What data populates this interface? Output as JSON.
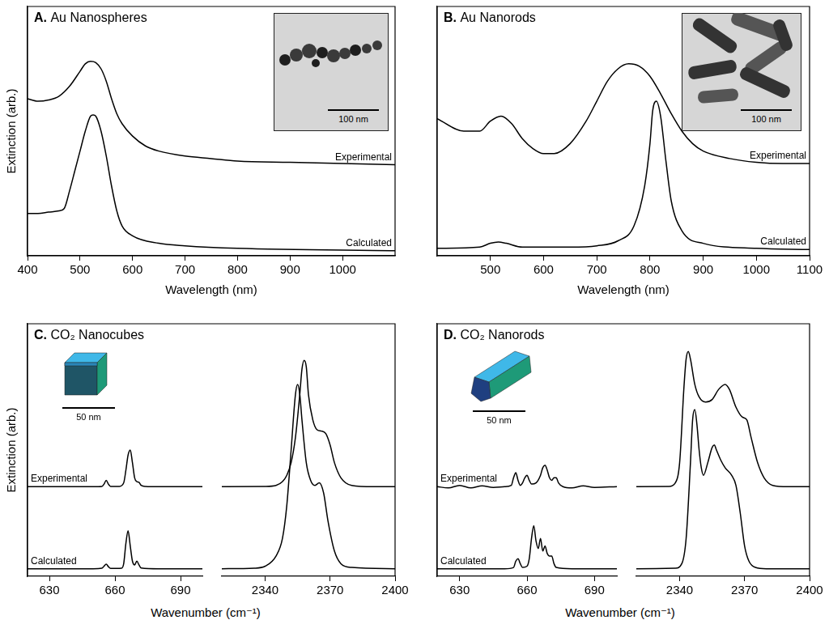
{
  "chart_data": [
    {
      "type": "line",
      "panel": "A.",
      "title": "Au Nanospheres",
      "xlabel": "Wavelength (nm)",
      "ylabel": "Extinction (arb.)",
      "xlim": [
        400,
        1100
      ],
      "xticks": [
        400,
        500,
        600,
        700,
        800,
        900,
        1000
      ],
      "ylim": [
        0,
        1
      ],
      "tick_labels": "x",
      "inset": {
        "scale_bar": "100 nm"
      },
      "series": [
        {
          "name": "Experimental",
          "color": "#000000",
          "x": [
            400,
            420,
            440,
            460,
            480,
            500,
            510,
            520,
            530,
            540,
            550,
            560,
            570,
            580,
            600,
            625,
            650,
            700,
            750,
            800,
            900,
            1000,
            1100
          ],
          "values": [
            0.63,
            0.62,
            0.625,
            0.64,
            0.68,
            0.74,
            0.77,
            0.78,
            0.775,
            0.75,
            0.7,
            0.63,
            0.57,
            0.53,
            0.48,
            0.44,
            0.42,
            0.4,
            0.39,
            0.38,
            0.375,
            0.37,
            0.365
          ]
        },
        {
          "name": "Calculated",
          "color": "#000000",
          "x": [
            400,
            420,
            440,
            460,
            470,
            480,
            490,
            500,
            510,
            520,
            525,
            530,
            540,
            550,
            560,
            570,
            580,
            600,
            650,
            700,
            800,
            1100
          ],
          "values": [
            0.17,
            0.17,
            0.175,
            0.18,
            0.19,
            0.26,
            0.34,
            0.42,
            0.5,
            0.56,
            0.565,
            0.56,
            0.5,
            0.4,
            0.28,
            0.18,
            0.12,
            0.08,
            0.05,
            0.04,
            0.03,
            0.02
          ]
        }
      ]
    },
    {
      "type": "line",
      "panel": "B.",
      "title": "Au Nanorods",
      "xlabel": "Wavelength (nm)",
      "xlim": [
        400,
        1100
      ],
      "xticks": [
        500,
        600,
        700,
        800,
        900,
        1000,
        1100
      ],
      "ylim": [
        0,
        1
      ],
      "tick_labels": "x",
      "inset": {
        "scale_bar": "100 nm"
      },
      "series": [
        {
          "name": "Experimental",
          "color": "#000000",
          "x": [
            400,
            450,
            480,
            500,
            520,
            540,
            560,
            580,
            600,
            620,
            650,
            680,
            700,
            720,
            740,
            760,
            780,
            800,
            820,
            840,
            860,
            880,
            900,
            950,
            1000,
            1050,
            1100
          ],
          "values": [
            0.55,
            0.5,
            0.5,
            0.54,
            0.56,
            0.53,
            0.47,
            0.43,
            0.41,
            0.41,
            0.45,
            0.54,
            0.62,
            0.7,
            0.75,
            0.77,
            0.76,
            0.72,
            0.65,
            0.57,
            0.5,
            0.45,
            0.42,
            0.39,
            0.375,
            0.37,
            0.37
          ]
        },
        {
          "name": "Calculated",
          "color": "#000000",
          "x": [
            400,
            480,
            500,
            515,
            530,
            560,
            650,
            700,
            740,
            770,
            790,
            800,
            805,
            812,
            820,
            830,
            840,
            860,
            900,
            1000,
            1100
          ],
          "values": [
            0.03,
            0.035,
            0.05,
            0.055,
            0.05,
            0.035,
            0.035,
            0.04,
            0.06,
            0.12,
            0.28,
            0.45,
            0.58,
            0.62,
            0.56,
            0.38,
            0.22,
            0.1,
            0.05,
            0.03,
            0.025
          ]
        }
      ]
    },
    {
      "type": "line",
      "panel": "C.",
      "title": "CO₂ Nanocubes",
      "xlabel": "Wavenumber (cm⁻¹)",
      "ylabel": "Extinction (arb.)",
      "ylim": [
        0,
        1
      ],
      "tick_labels": "x",
      "inset": {
        "scale_bar": "50 nm"
      },
      "x_segments": [
        {
          "xlim": [
            620,
            700
          ],
          "xticks": [
            630,
            660,
            690
          ]
        },
        {
          "xlim": [
            2320,
            2400
          ],
          "xticks": [
            2340,
            2370,
            2400
          ]
        }
      ],
      "series": [
        {
          "name": "Experimental",
          "color": "#000000",
          "segments": [
            {
              "x": [
                620,
                630,
                640,
                650,
                654,
                655,
                656,
                657,
                658,
                662,
                664,
                665,
                666,
                667,
                668,
                669,
                670,
                671,
                672,
                674,
                680,
                690,
                700
              ],
              "values": [
                0.355,
                0.355,
                0.355,
                0.355,
                0.356,
                0.365,
                0.38,
                0.365,
                0.356,
                0.356,
                0.37,
                0.42,
                0.48,
                0.5,
                0.45,
                0.39,
                0.375,
                0.372,
                0.36,
                0.356,
                0.355,
                0.355,
                0.355
              ]
            },
            {
              "x": [
                2320,
                2340,
                2345,
                2348,
                2350,
                2352,
                2354,
                2356,
                2357,
                2358,
                2359,
                2360,
                2362,
                2364,
                2366,
                2368,
                2370,
                2372,
                2375,
                2380,
                2390,
                2400
              ],
              "values": [
                0.355,
                0.356,
                0.36,
                0.375,
                0.4,
                0.45,
                0.55,
                0.72,
                0.82,
                0.855,
                0.83,
                0.72,
                0.62,
                0.58,
                0.575,
                0.565,
                0.52,
                0.45,
                0.39,
                0.36,
                0.355,
                0.355
              ]
            }
          ]
        },
        {
          "name": "Calculated",
          "color": "#000000",
          "segments": [
            {
              "x": [
                620,
                650,
                654,
                655,
                656,
                657,
                658,
                663,
                664,
                665,
                666,
                667,
                668,
                669,
                670,
                671,
                672,
                680,
                700
              ],
              "values": [
                0.03,
                0.03,
                0.032,
                0.04,
                0.048,
                0.038,
                0.031,
                0.032,
                0.05,
                0.13,
                0.18,
                0.12,
                0.06,
                0.045,
                0.06,
                0.045,
                0.033,
                0.03,
                0.03
              ]
            },
            {
              "x": [
                2320,
                2335,
                2340,
                2345,
                2348,
                2350,
                2352,
                2354,
                2355,
                2356,
                2357,
                2359,
                2361,
                2363,
                2365,
                2367,
                2369,
                2372,
                2375,
                2380,
                2400
              ],
              "values": [
                0.03,
                0.032,
                0.04,
                0.08,
                0.15,
                0.28,
                0.5,
                0.72,
                0.76,
                0.72,
                0.62,
                0.45,
                0.38,
                0.36,
                0.37,
                0.33,
                0.22,
                0.1,
                0.05,
                0.035,
                0.03
              ]
            }
          ]
        }
      ]
    },
    {
      "type": "line",
      "panel": "D.",
      "title": "CO₂ Nanorods",
      "xlabel": "Wavenumber (cm⁻¹)",
      "ylim": [
        0,
        1
      ],
      "tick_labels": "x",
      "inset": {
        "scale_bar": "50 nm"
      },
      "x_segments": [
        {
          "xlim": [
            620,
            700
          ],
          "xticks": [
            630,
            660,
            690
          ]
        },
        {
          "xlim": [
            2320,
            2400
          ],
          "xticks": [
            2340,
            2370,
            2400
          ]
        }
      ],
      "series": [
        {
          "name": "Experimental",
          "color": "#000000",
          "segments": [
            {
              "x": [
                620,
                625,
                630,
                635,
                640,
                645,
                650,
                653,
                654,
                655,
                656,
                657,
                658,
                659,
                660,
                661,
                662,
                664,
                666,
                667,
                668,
                669,
                670,
                671,
                672,
                673,
                674,
                676,
                680,
                685,
                690,
                700
              ],
              "values": [
                0.355,
                0.35,
                0.36,
                0.35,
                0.358,
                0.352,
                0.355,
                0.36,
                0.39,
                0.41,
                0.38,
                0.36,
                0.37,
                0.39,
                0.4,
                0.38,
                0.365,
                0.37,
                0.4,
                0.43,
                0.44,
                0.42,
                0.39,
                0.38,
                0.39,
                0.39,
                0.37,
                0.355,
                0.35,
                0.358,
                0.352,
                0.355
              ]
            },
            {
              "x": [
                2320,
                2335,
                2338,
                2340,
                2342,
                2343,
                2344,
                2345,
                2347,
                2349,
                2352,
                2355,
                2358,
                2361,
                2363,
                2366,
                2369,
                2371,
                2373,
                2376,
                2379,
                2383,
                2390,
                2400
              ],
              "values": [
                0.355,
                0.356,
                0.37,
                0.45,
                0.75,
                0.86,
                0.89,
                0.86,
                0.76,
                0.71,
                0.69,
                0.7,
                0.74,
                0.76,
                0.74,
                0.67,
                0.63,
                0.62,
                0.55,
                0.45,
                0.39,
                0.36,
                0.355,
                0.355
              ]
            }
          ]
        },
        {
          "name": "Calculated",
          "color": "#000000",
          "segments": [
            {
              "x": [
                620,
                650,
                654,
                655,
                656,
                657,
                658,
                660,
                661,
                662,
                663,
                664,
                665,
                666,
                667,
                668,
                669,
                670,
                671,
                672,
                673,
                680,
                700
              ],
              "values": [
                0.03,
                0.03,
                0.035,
                0.06,
                0.07,
                0.05,
                0.035,
                0.04,
                0.07,
                0.15,
                0.2,
                0.14,
                0.11,
                0.15,
                0.1,
                0.12,
                0.09,
                0.08,
                0.08,
                0.05,
                0.035,
                0.03,
                0.03
              ]
            },
            {
              "x": [
                2320,
                2338,
                2341,
                2343,
                2345,
                2346,
                2347,
                2348,
                2349,
                2350,
                2351,
                2353,
                2355,
                2356,
                2357,
                2359,
                2361,
                2364,
                2366,
                2368,
                2370,
                2372,
                2375,
                2380,
                2400
              ],
              "values": [
                0.03,
                0.032,
                0.05,
                0.15,
                0.45,
                0.62,
                0.66,
                0.6,
                0.5,
                0.43,
                0.4,
                0.45,
                0.51,
                0.52,
                0.5,
                0.46,
                0.43,
                0.4,
                0.36,
                0.25,
                0.12,
                0.06,
                0.035,
                0.03,
                0.03
              ]
            }
          ]
        }
      ]
    }
  ]
}
